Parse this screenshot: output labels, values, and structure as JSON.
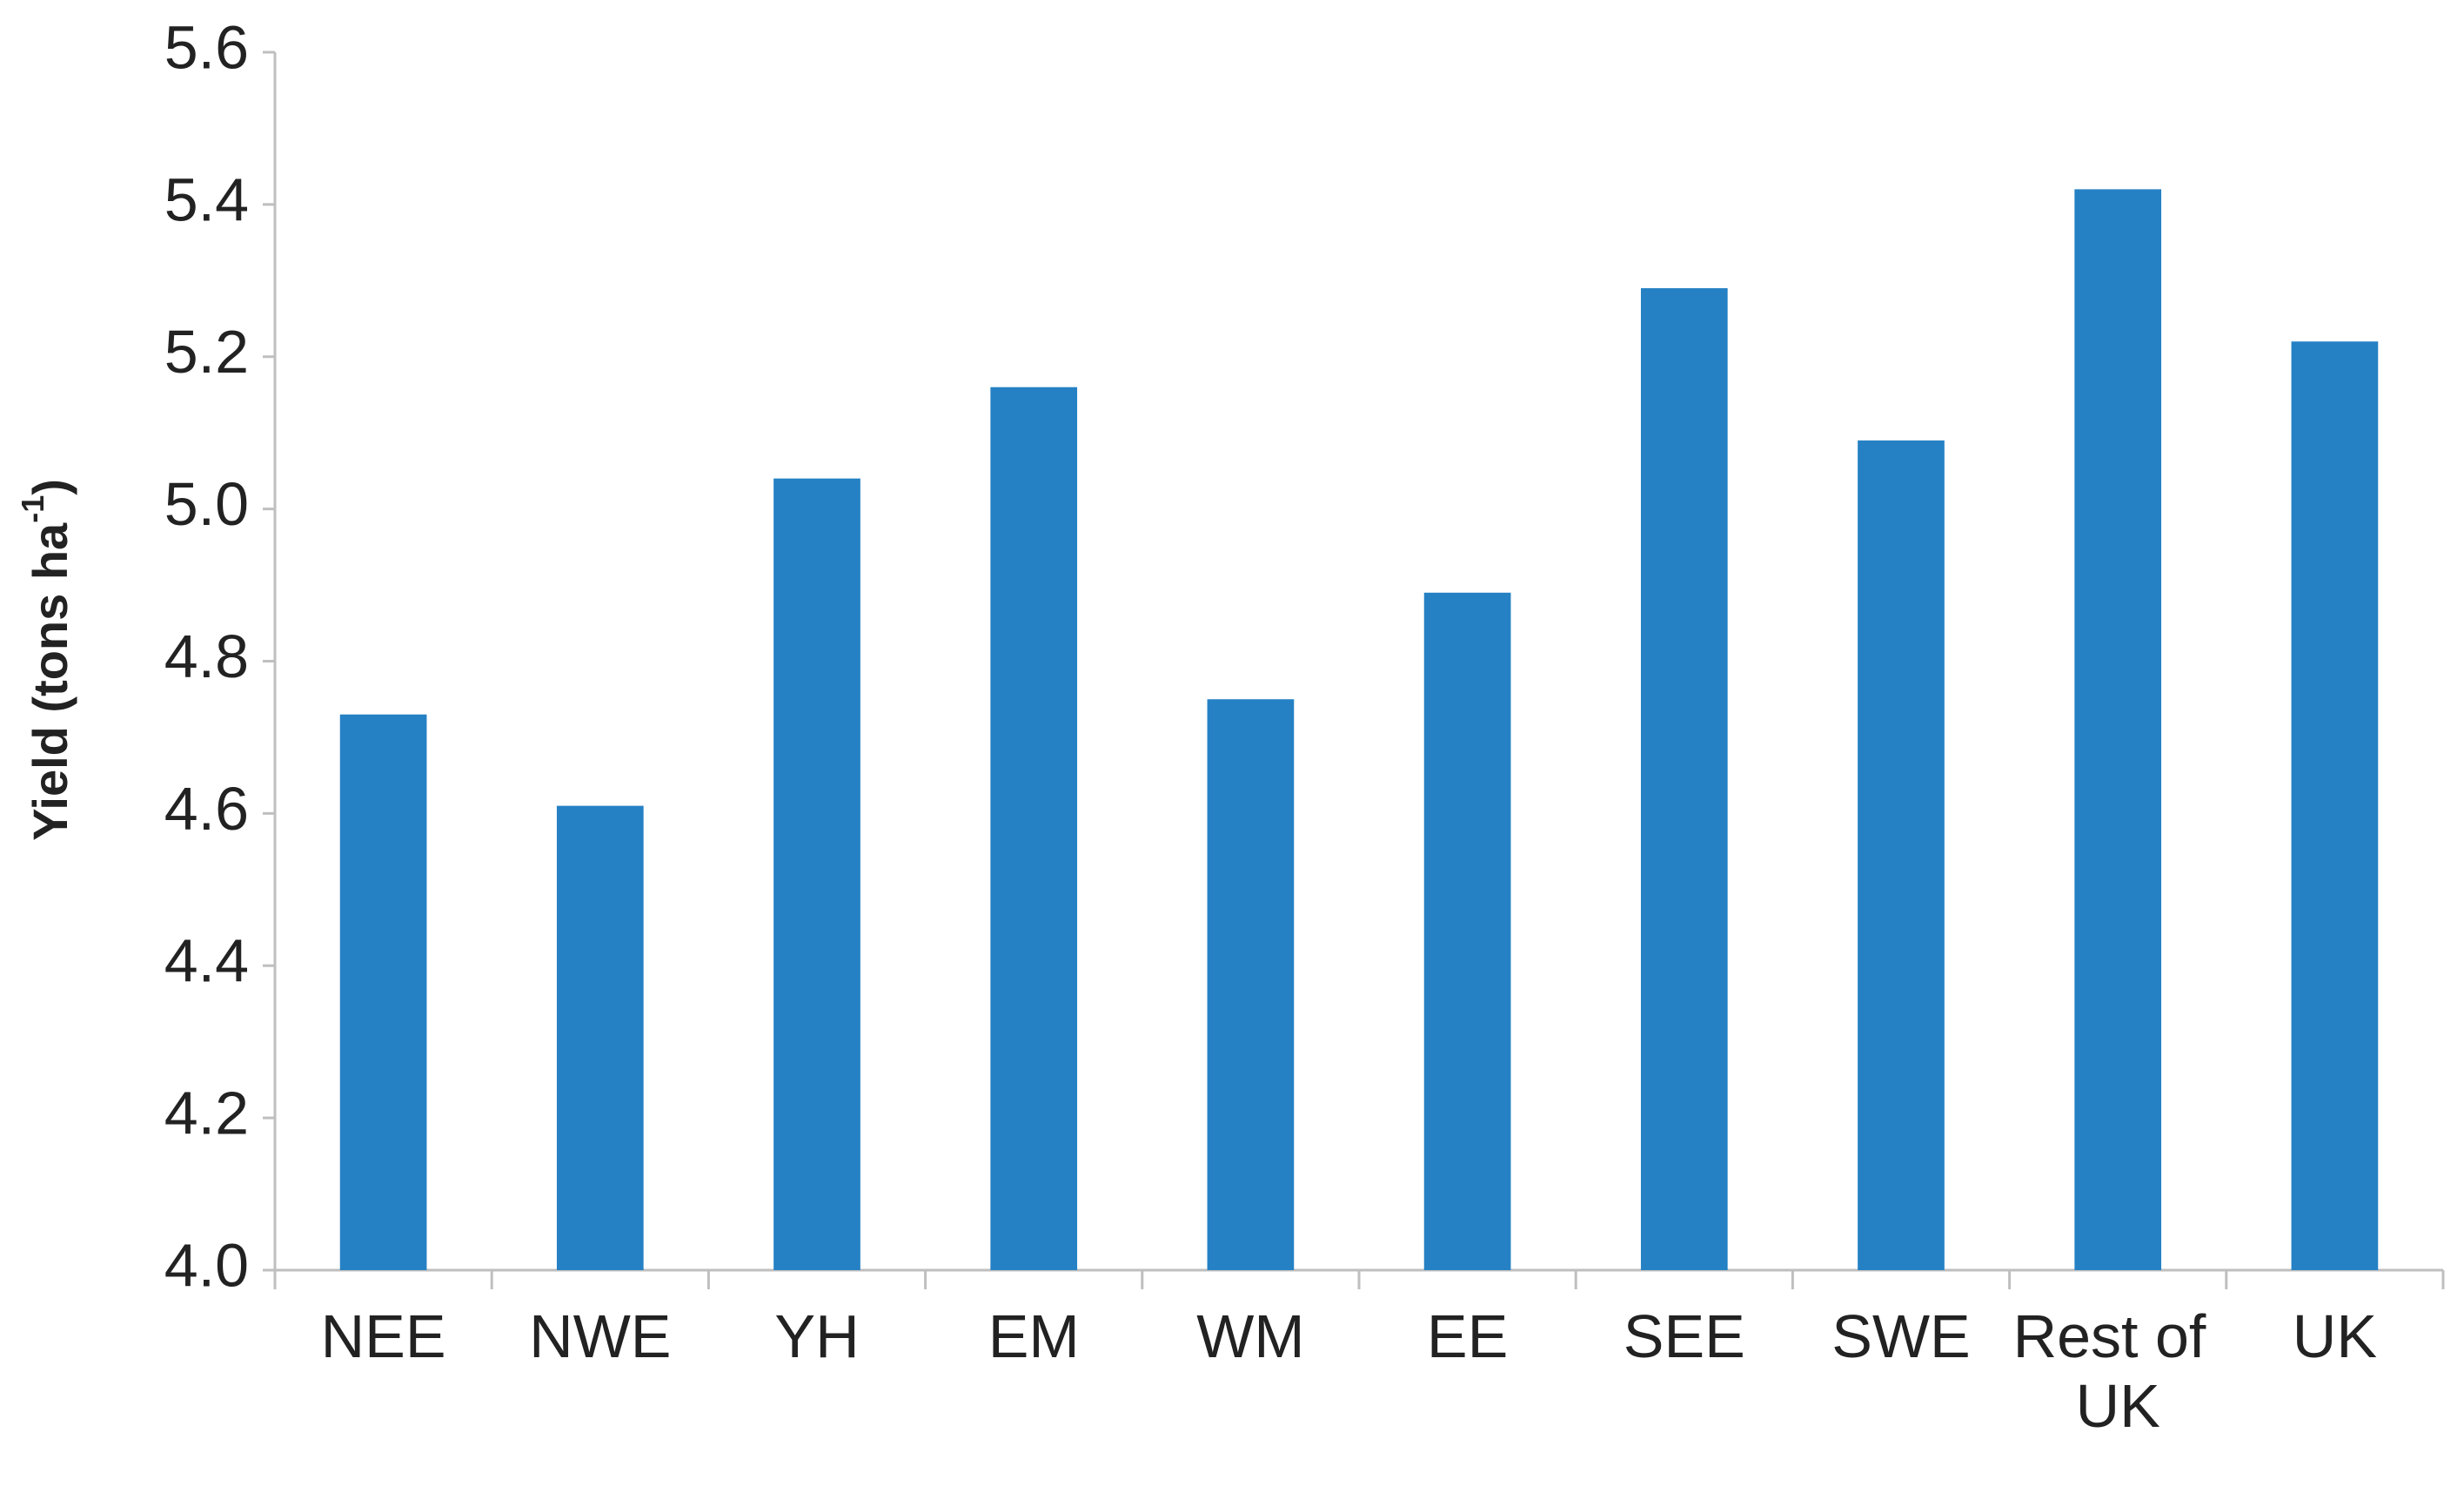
{
  "chart_data": {
    "type": "bar",
    "y_label": [
      "Yield (tons ha",
      "-1",
      ")"
    ],
    "categories": [
      "NEE",
      "NWE",
      "YH",
      "EM",
      "WM",
      "EE",
      "SEE",
      "SWE",
      "Rest of UK",
      "UK"
    ],
    "values": [
      4.73,
      4.61,
      5.04,
      5.16,
      4.75,
      4.89,
      5.29,
      5.09,
      5.42,
      5.22
    ],
    "color": "#2581c4",
    "ylim": [
      4,
      5.6
    ],
    "yticks": [
      {
        "value": 4,
        "label": "4.0"
      },
      4.2,
      4.4,
      4.6,
      4.8,
      {
        "value": 5,
        "label": "5.0"
      },
      5.2,
      5.4,
      5.6
    ],
    "grid": false
  }
}
